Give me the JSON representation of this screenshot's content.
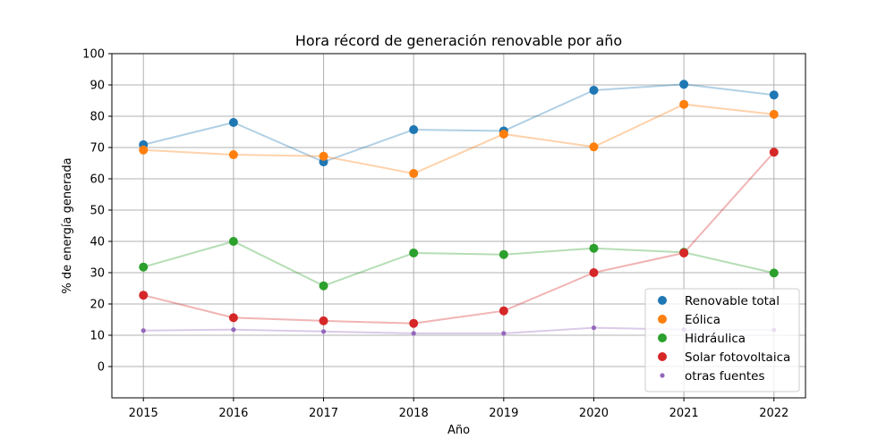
{
  "chart_data": {
    "type": "line",
    "title": "Hora récord de generación renovable por año",
    "xlabel": "Año",
    "ylabel": "% de energía generada",
    "x": [
      2015,
      2016,
      2017,
      2018,
      2019,
      2020,
      2021,
      2022
    ],
    "x_tick_labels": [
      "2015",
      "2016",
      "2017",
      "2018",
      "2019",
      "2020",
      "2021",
      "2022"
    ],
    "y_ticks": [
      0,
      10,
      20,
      30,
      40,
      50,
      60,
      70,
      80,
      90,
      100
    ],
    "y_tick_labels": [
      "0",
      "10",
      "20",
      "30",
      "40",
      "50",
      "60",
      "70",
      "80",
      "90",
      "100"
    ],
    "ylim": [
      -10,
      100
    ],
    "xlim": [
      2014.65,
      2022.35
    ],
    "grid": true,
    "legend_position": "bottom-right",
    "series": [
      {
        "name": "Renovable total",
        "color": "#1f77b4",
        "marker": "large",
        "values": [
          70.9,
          78.0,
          65.4,
          75.7,
          75.3,
          88.3,
          90.2,
          86.8
        ]
      },
      {
        "name": "Eólica",
        "color": "#ff7f0e",
        "marker": "large",
        "values": [
          69.2,
          67.7,
          67.2,
          61.7,
          74.3,
          70.2,
          83.8,
          80.6
        ]
      },
      {
        "name": "Hidráulica",
        "color": "#2ca02c",
        "marker": "large",
        "values": [
          31.8,
          40.0,
          25.8,
          36.3,
          35.8,
          37.8,
          36.5,
          29.9
        ]
      },
      {
        "name": "Solar fotovoltaica",
        "color": "#d62728",
        "marker": "large",
        "values": [
          22.8,
          15.6,
          14.6,
          13.8,
          17.8,
          30.0,
          36.3,
          68.5
        ]
      },
      {
        "name": "otras fuentes",
        "color": "#9467bd",
        "marker": "small",
        "values": [
          11.5,
          11.8,
          11.2,
          10.6,
          10.6,
          12.4,
          11.8,
          11.7
        ]
      }
    ]
  }
}
